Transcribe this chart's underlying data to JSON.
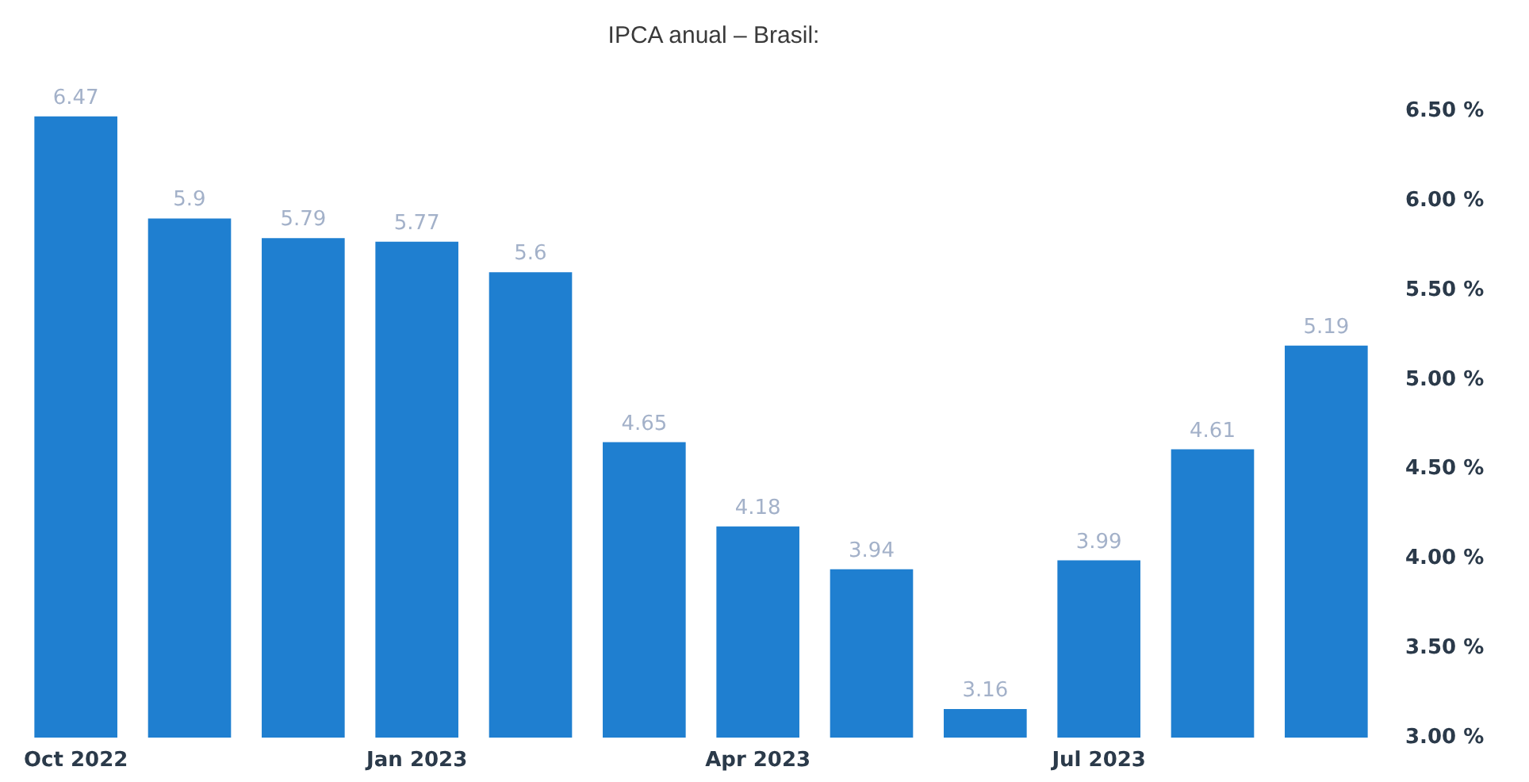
{
  "chart_data": {
    "type": "bar",
    "title": "IPCA anual – Brasil:",
    "categories": [
      "Oct 2022",
      null,
      null,
      "Jan 2023",
      null,
      null,
      "Apr 2023",
      null,
      null,
      "Jul 2023",
      null,
      null
    ],
    "values": [
      6.47,
      5.9,
      5.79,
      5.77,
      5.6,
      4.65,
      4.18,
      3.94,
      3.16,
      3.99,
      4.61,
      5.19
    ],
    "color": "#1f7fd0",
    "ylim": [
      3,
      6.5
    ],
    "yticks": [
      {
        "value": 3,
        "label": "3.00 %"
      },
      {
        "value": 3.5,
        "label": "3.50 %"
      },
      {
        "value": 4,
        "label": "4.00 %"
      },
      {
        "value": 4.5,
        "label": "4.50 %"
      },
      {
        "value": 5,
        "label": "5.00 %"
      },
      {
        "value": 5.5,
        "label": "5.50 %"
      },
      {
        "value": 6,
        "label": "6.00 %"
      },
      {
        "value": 6.5,
        "label": "6.50 %"
      }
    ],
    "grid": false,
    "data_labels": true
  }
}
